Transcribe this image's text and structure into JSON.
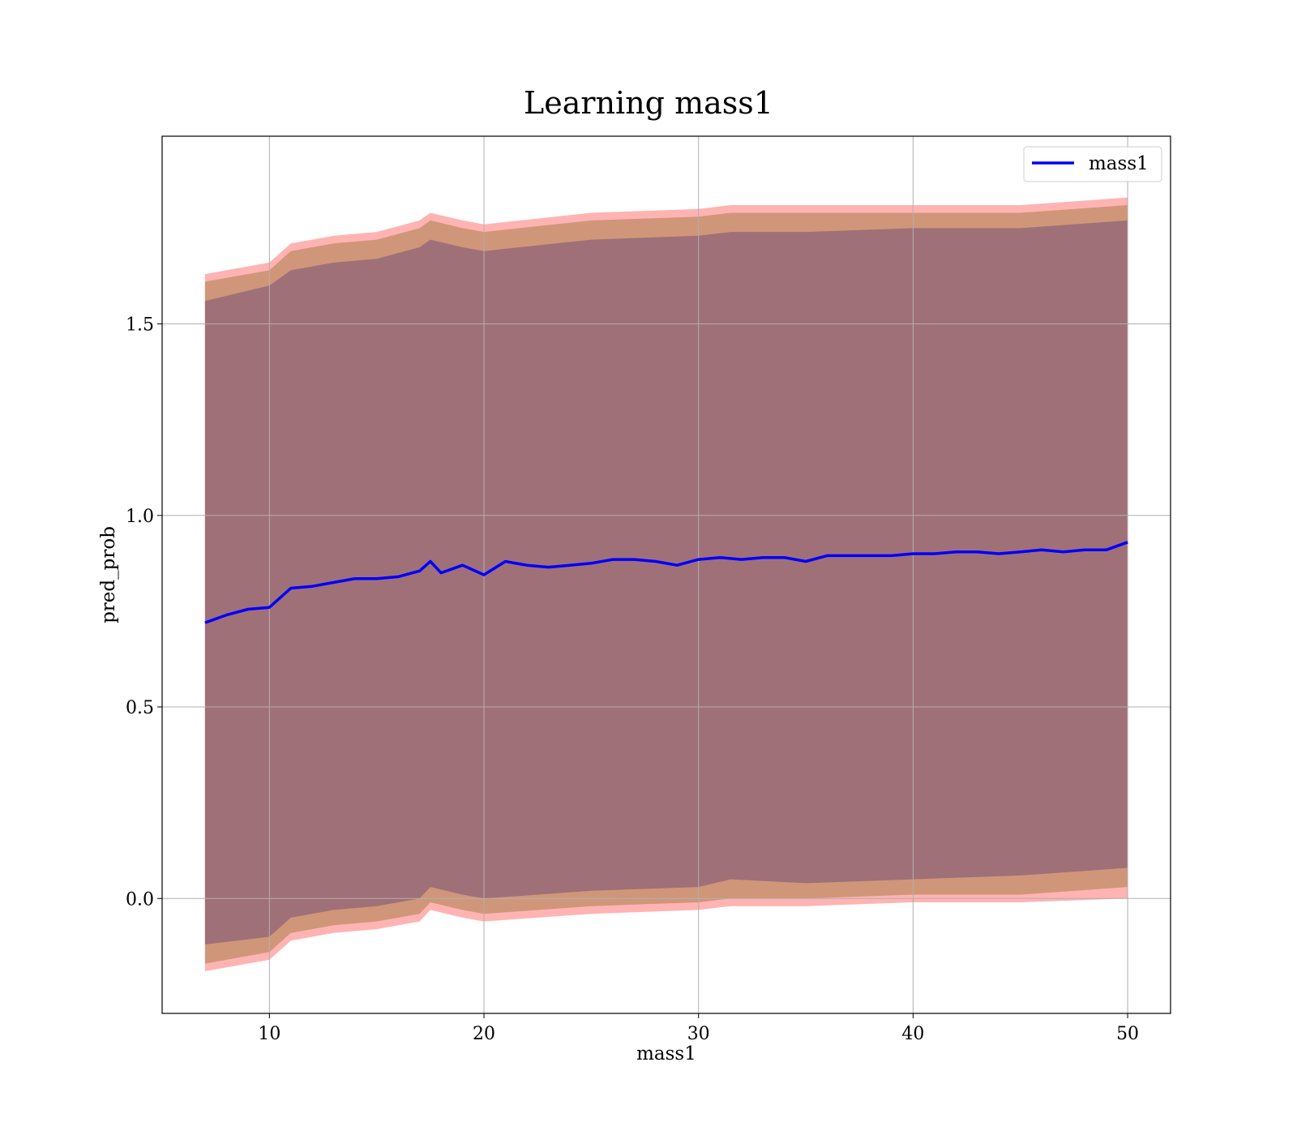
{
  "chart_data": {
    "type": "line",
    "title": "Learning mass1",
    "xlabel": "mass1",
    "ylabel": "pred_prob",
    "xlim": [
      5,
      52
    ],
    "ylim": [
      -0.3,
      1.99
    ],
    "xticks": [
      10,
      20,
      30,
      40,
      50
    ],
    "xtick_labels": [
      "10",
      "20",
      "30",
      "40",
      "50"
    ],
    "yticks": [
      0.0,
      0.5,
      1.0,
      1.5
    ],
    "ytick_labels": [
      "0.0",
      "0.5",
      "1.0",
      "1.5"
    ],
    "grid": true,
    "legend": {
      "position": "top-right",
      "entries": [
        "mass1"
      ]
    },
    "colors": {
      "line": "#0000ff",
      "band_outer": "#ff9999",
      "band_mid": "#c8906e",
      "band_inner": "#a07078"
    },
    "series": [
      {
        "name": "mass1",
        "x": [
          7,
          8,
          9,
          10,
          11,
          12,
          13,
          14,
          15,
          16,
          17,
          17.5,
          18,
          19,
          20,
          21,
          22,
          23,
          24,
          25,
          26,
          27,
          28,
          29,
          30,
          31,
          32,
          33,
          34,
          35,
          36,
          37,
          38,
          39,
          40,
          41,
          42,
          43,
          44,
          45,
          46,
          47,
          48,
          49,
          50
        ],
        "y": [
          0.72,
          0.74,
          0.755,
          0.76,
          0.81,
          0.815,
          0.825,
          0.835,
          0.835,
          0.84,
          0.855,
          0.88,
          0.85,
          0.87,
          0.845,
          0.88,
          0.87,
          0.865,
          0.87,
          0.875,
          0.885,
          0.885,
          0.88,
          0.87,
          0.885,
          0.89,
          0.885,
          0.89,
          0.89,
          0.88,
          0.895,
          0.895,
          0.895,
          0.895,
          0.9,
          0.9,
          0.905,
          0.905,
          0.9,
          0.905,
          0.91,
          0.905,
          0.91,
          0.91,
          0.93
        ]
      }
    ],
    "bands": [
      {
        "x": [
          7,
          10,
          11,
          13,
          15,
          17,
          17.5,
          19,
          20,
          25,
          30,
          31.5,
          35,
          40,
          45,
          50
        ],
        "upper": [
          1.63,
          1.66,
          1.71,
          1.73,
          1.74,
          1.77,
          1.79,
          1.77,
          1.76,
          1.79,
          1.8,
          1.81,
          1.81,
          1.81,
          1.81,
          1.83
        ],
        "lower": [
          -0.19,
          -0.16,
          -0.11,
          -0.09,
          -0.08,
          -0.06,
          -0.03,
          -0.05,
          -0.06,
          -0.04,
          -0.03,
          -0.02,
          -0.02,
          -0.01,
          -0.01,
          0.0
        ]
      },
      {
        "x": [
          7,
          10,
          11,
          13,
          15,
          17,
          17.5,
          19,
          20,
          25,
          30,
          31.5,
          35,
          40,
          45,
          50
        ],
        "upper": [
          1.61,
          1.64,
          1.69,
          1.71,
          1.72,
          1.75,
          1.77,
          1.75,
          1.74,
          1.77,
          1.78,
          1.79,
          1.79,
          1.79,
          1.79,
          1.81
        ],
        "lower": [
          -0.17,
          -0.14,
          -0.09,
          -0.07,
          -0.06,
          -0.04,
          -0.01,
          -0.03,
          -0.04,
          -0.02,
          -0.01,
          0.0,
          0.0,
          0.01,
          0.01,
          0.03
        ]
      },
      {
        "x": [
          7,
          10,
          11,
          13,
          15,
          17,
          17.5,
          19,
          20,
          25,
          30,
          31.5,
          35,
          40,
          45,
          50
        ],
        "upper": [
          1.56,
          1.6,
          1.64,
          1.66,
          1.67,
          1.7,
          1.72,
          1.7,
          1.69,
          1.72,
          1.73,
          1.74,
          1.74,
          1.75,
          1.75,
          1.77
        ],
        "lower": [
          -0.12,
          -0.1,
          -0.05,
          -0.03,
          -0.02,
          0.0,
          0.03,
          0.01,
          0.0,
          0.02,
          0.03,
          0.05,
          0.04,
          0.05,
          0.06,
          0.08
        ]
      }
    ]
  }
}
